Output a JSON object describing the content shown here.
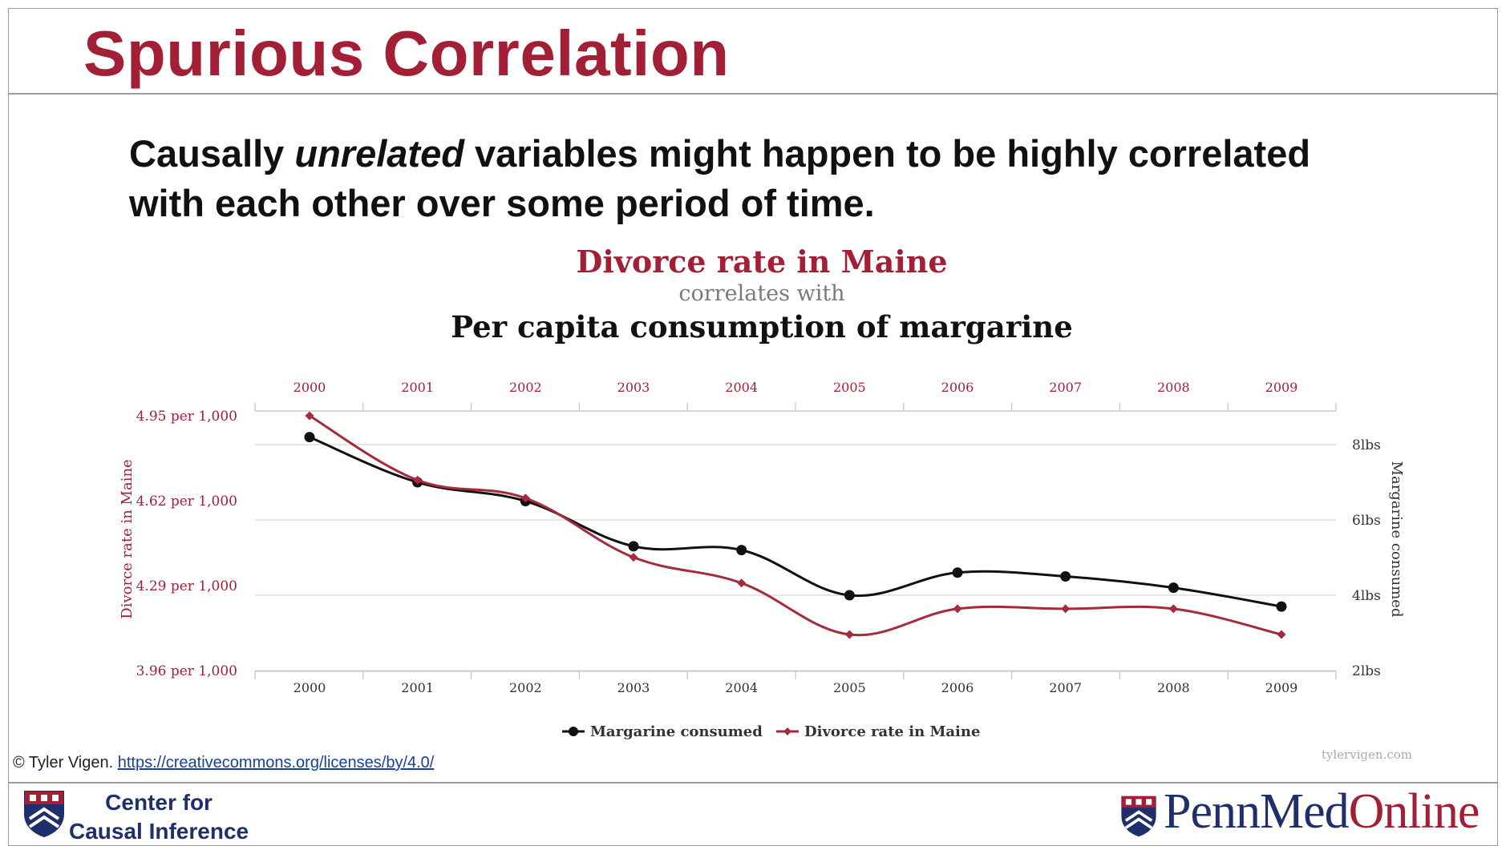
{
  "slide": {
    "title": "Spurious Correlation",
    "body_part1": "Causally ",
    "body_emph": "unrelated",
    "body_part2": " variables might happen to be highly correlated with each other over some period of time."
  },
  "attribution": {
    "text": "© Tyler Vigen. ",
    "link": "https://creativecommons.org/licenses/by/4.0/"
  },
  "footer": {
    "cci_line1": "Center for",
    "cci_line2": "Causal Inference",
    "penn_part1": "PennMed",
    "penn_part2": "Online"
  },
  "colors": {
    "accent_red": "#a31f36",
    "navy": "#1f2f6b",
    "series_black": "#111111",
    "series_red": "#a52a3c"
  },
  "chart_data": {
    "type": "line",
    "title": "Divorce rate in Maine",
    "subtitle": "correlates with",
    "title2": "Per capita consumption of margarine",
    "x": [
      "2000",
      "2001",
      "2002",
      "2003",
      "2004",
      "2005",
      "2006",
      "2007",
      "2008",
      "2009"
    ],
    "left_axis": {
      "label": "Divorce rate in Maine",
      "ticks": [
        "4.95 per 1,000",
        "4.62 per 1,000",
        "4.29 per 1,000",
        "3.96 per 1,000"
      ],
      "tick_values": [
        4.95,
        4.62,
        4.29,
        3.96
      ],
      "range": [
        3.96,
        4.95
      ]
    },
    "right_axis": {
      "label": "Margarine consumed",
      "ticks": [
        "8lbs",
        "6lbs",
        "4lbs",
        "2lbs"
      ],
      "tick_values": [
        8,
        6,
        4,
        2
      ],
      "range": [
        2,
        8.65
      ]
    },
    "series": [
      {
        "name": "Margarine consumed",
        "axis": "right",
        "color": "#111111",
        "marker": "circle",
        "values": [
          8.2,
          7.0,
          6.5,
          5.3,
          5.2,
          4.0,
          4.6,
          4.5,
          4.2,
          3.7
        ]
      },
      {
        "name": "Divorce rate in Maine",
        "axis": "left",
        "color": "#a52a3c",
        "marker": "diamond",
        "values": [
          4.95,
          4.7,
          4.63,
          4.4,
          4.3,
          4.1,
          4.2,
          4.2,
          4.2,
          4.1
        ]
      }
    ],
    "legend_position": "bottom",
    "watermark": "tylervigen.com",
    "grid": true
  }
}
